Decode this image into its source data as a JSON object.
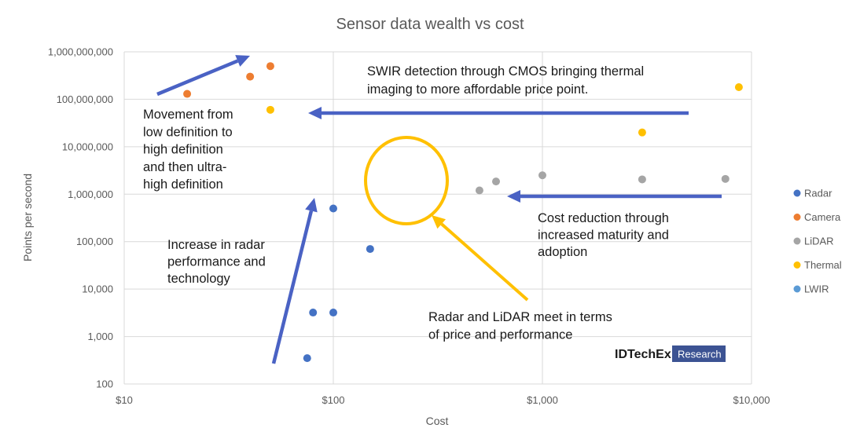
{
  "chart_data": {
    "type": "scatter",
    "title": "Sensor data wealth vs cost",
    "xlabel": "Cost",
    "ylabel": "Points per second",
    "xscale": "log",
    "yscale": "log",
    "xlim": [
      10,
      10000
    ],
    "ylim": [
      100,
      1000000000
    ],
    "grid": true,
    "legend_position": "right",
    "x_ticks": [
      {
        "value": 10,
        "label": "$10"
      },
      {
        "value": 100,
        "label": "$100"
      },
      {
        "value": 1000,
        "label": "$1,000"
      },
      {
        "value": 10000,
        "label": "$10,000"
      }
    ],
    "y_ticks": [
      {
        "value": 100,
        "label": "100"
      },
      {
        "value": 1000,
        "label": "1,000"
      },
      {
        "value": 10000,
        "label": "10,000"
      },
      {
        "value": 100000,
        "label": "100,000"
      },
      {
        "value": 1000000,
        "label": "1,000,000"
      },
      {
        "value": 10000000,
        "label": "10,000,000"
      },
      {
        "value": 100000000,
        "label": "100,000,000"
      },
      {
        "value": 1000000000,
        "label": "1,000,000,000"
      }
    ],
    "series": [
      {
        "name": "Radar",
        "color": "#4472C4",
        "points": [
          [
            75,
            350
          ],
          [
            80,
            3200
          ],
          [
            100,
            3200
          ],
          [
            100,
            500000
          ],
          [
            150,
            70000
          ]
        ]
      },
      {
        "name": "Camera",
        "color": "#ED7D31",
        "points": [
          [
            20,
            130000000
          ],
          [
            40,
            300000000
          ],
          [
            50,
            500000000
          ]
        ]
      },
      {
        "name": "LiDAR",
        "color": "#A5A5A5",
        "points": [
          [
            500,
            1200000
          ],
          [
            600,
            1850000
          ],
          [
            1000,
            2500000
          ],
          [
            3000,
            2050000
          ],
          [
            7500,
            2100000
          ]
        ]
      },
      {
        "name": "Thermal",
        "color": "#FFC000",
        "points": [
          [
            50,
            60000000
          ],
          [
            3000,
            20000000
          ],
          [
            8700,
            180000000
          ]
        ]
      },
      {
        "name": "LWIR",
        "color": "#5B9BD5",
        "points": []
      }
    ],
    "annotations": [
      {
        "id": "movement",
        "lines": [
          "Movement from",
          "low definition to",
          "high definition",
          "and then ultra-",
          "high definition"
        ]
      },
      {
        "id": "swir",
        "lines": [
          "SWIR detection through CMOS bringing thermal",
          "imaging to more affordable price point."
        ]
      },
      {
        "id": "cost",
        "lines": [
          "Cost reduction through",
          "increased maturity and",
          "adoption"
        ]
      },
      {
        "id": "radar-perf",
        "lines": [
          "Increase in radar",
          "performance and",
          "technology"
        ]
      },
      {
        "id": "meet",
        "lines": [
          "Radar and LiDAR meet in terms",
          "of price and performance"
        ]
      }
    ],
    "colors": {
      "arrow": "#4A62C4",
      "highlight": "#FFC000",
      "grid": "#D9D9D9",
      "text": "#595959"
    }
  },
  "logo": {
    "main": "IDTechEx",
    "sub": "Research",
    "sub_bg": "#3C5393"
  }
}
